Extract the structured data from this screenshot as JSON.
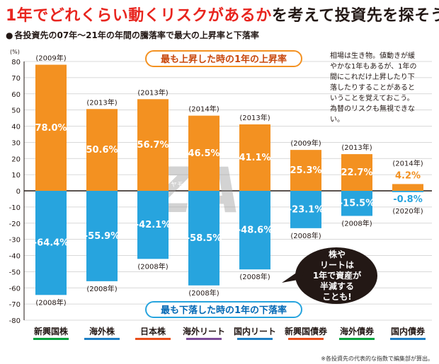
{
  "title_red": "1年でどれくらい動くリスクがあるか",
  "title_black": "を考えて投資先を探そう",
  "subtitle": "各投資先の07年～21年の年間の騰落率で最大の上昇率と下落率",
  "footnote": "※各投資先の代表的な指数で編集部が算出。",
  "note": "相場は生き物。値動きが緩やかな1年もあるが、1年の間にこれだけ上昇したり下落したりすることがあるということを覚えておこう。為替のリスクも無視できない。",
  "watermark": "ZAi",
  "watermark_small": "ダイヤモンド",
  "bubble": [
    "株や",
    "リートは",
    "1年で資産が",
    "半減する",
    "ことも!"
  ],
  "colors": {
    "up": "#f39121",
    "down": "#27a4de",
    "pos_label": "#ffffff",
    "neg_label": "#ffffff",
    "label_banner_up_text": "#c8470b",
    "label_banner_down_text": "#0068b5"
  },
  "chart_data": {
    "type": "bar",
    "title": "各投資先の07年～21年の年間の騰落率で最大の上昇率と下落率",
    "ylabel": "(%)",
    "ylim": [
      -80,
      80
    ],
    "yticks": [
      80,
      70,
      60,
      50,
      40,
      30,
      20,
      10,
      0,
      -10,
      -20,
      -30,
      -40,
      -50,
      -60,
      -70,
      -80
    ],
    "grid": true,
    "banner_up": "最も上昇した時の1年の上昇率",
    "banner_down": "最も下落した時の1年の下落率",
    "categories": [
      "新興国株",
      "海外株",
      "日本株",
      "海外リート",
      "国内リート",
      "新興国債券",
      "海外債券",
      "国内債券"
    ],
    "underline_colors": [
      "#00a23f",
      "#1d7fc4",
      "#e94e1b",
      "#7d4b98",
      "#1d7fc4",
      "#e94e1b",
      "#00a23f",
      "#1d7fc4"
    ],
    "series": [
      {
        "name": "最も上昇した時の1年の上昇率",
        "values": [
          78.0,
          50.6,
          56.7,
          46.5,
          41.1,
          25.3,
          22.7,
          4.2
        ],
        "labels": [
          "78.0%",
          "50.6%",
          "56.7%",
          "46.5%",
          "41.1%",
          "25.3%",
          "22.7%",
          "4.2%"
        ],
        "years": [
          "(2009年)",
          "(2013年)",
          "(2013年)",
          "(2014年)",
          "(2013年)",
          "(2009年)",
          "(2013年)",
          "(2014年)"
        ]
      },
      {
        "name": "最も下落した時の1年の下落率",
        "values": [
          -64.4,
          -55.9,
          -42.1,
          -58.5,
          -48.6,
          -23.1,
          -15.5,
          -0.8
        ],
        "labels": [
          "-64.4%",
          "-55.9%",
          "-42.1%",
          "-58.5%",
          "-48.6%",
          "-23.1%",
          "-15.5%",
          "-0.8%"
        ],
        "years": [
          "(2008年)",
          "(2008年)",
          "(2008年)",
          "(2008年)",
          "(2008年)",
          "(2008年)",
          "(2008年)",
          "(2020年)"
        ]
      }
    ]
  }
}
